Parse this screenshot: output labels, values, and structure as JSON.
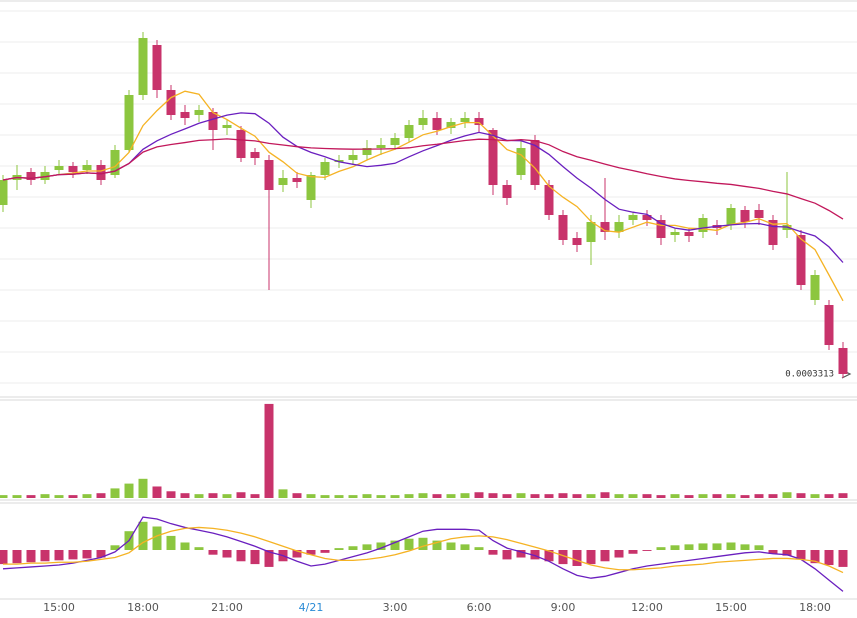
{
  "chart_data": {
    "type": "candlestick",
    "categories": [
      null,
      null,
      null,
      null,
      "15:00",
      null,
      null,
      null,
      null,
      null,
      "18:00",
      null,
      null,
      null,
      null,
      null,
      "21:00",
      null,
      null,
      null,
      null,
      null,
      "4/21",
      null,
      null,
      null,
      null,
      null,
      "3:00",
      null,
      null,
      null,
      null,
      null,
      "6:00",
      null,
      null,
      null,
      null,
      null,
      "9:00",
      null,
      null,
      null,
      null,
      null,
      "12:00",
      null,
      null,
      null,
      null,
      null,
      "15:00",
      null,
      null,
      null,
      null,
      null,
      "18:00",
      null,
      null
    ],
    "open": [
      0.00033975,
      0.000341,
      0.0003414,
      0.000341,
      0.0003415,
      0.0003417,
      0.0003415,
      0.00034175,
      0.00034125,
      0.0003425,
      0.00034525,
      0.00034775,
      0.0003455,
      0.0003444,
      0.00034425,
      0.0003444,
      0.0003436,
      0.0003435,
      0.0003424,
      0.000342,
      0.00034075,
      0.0003411,
      0.00034,
      0.00034125,
      0.0003419,
      0.000342,
      0.00034225,
      0.0003426,
      0.00034275,
      0.0003431,
      0.00034375,
      0.0003441,
      0.0003436,
      0.0003439,
      0.0003441,
      0.0003435,
      0.00034075,
      0.00034125,
      0.000343,
      0.00034075,
      0.00033925,
      0.0003381,
      0.0003379,
      0.0003389,
      0.0003384,
      0.000339,
      0.00033925,
      0.000339,
      0.00033825,
      0.0003384,
      0.0003384,
      0.00033875,
      0.00033875,
      0.0003395,
      0.0003395,
      0.000339,
      0.0003385,
      0.00033825,
      0.000335,
      0.00033475,
      0.0003326
    ],
    "close": [
      0.000341,
      0.00034125,
      0.000341,
      0.0003414,
      0.0003417,
      0.0003414,
      0.00034175,
      0.000341,
      0.0003425,
      0.00034525,
      0.0003481,
      0.0003455,
      0.00034425,
      0.0003441,
      0.0003445,
      0.0003435,
      0.00034375,
      0.0003421,
      0.0003421,
      0.0003405,
      0.0003411,
      0.0003409,
      0.00034125,
      0.0003419,
      0.000342,
      0.00034225,
      0.0003426,
      0.00034275,
      0.0003431,
      0.00034375,
      0.0003441,
      0.0003435,
      0.0003439,
      0.0003441,
      0.00034375,
      0.00034075,
      0.0003401,
      0.0003426,
      0.00034075,
      0.00033925,
      0.000338,
      0.00033775,
      0.0003389,
      0.0003384,
      0.0003389,
      0.00033925,
      0.000339,
      0.0003381,
      0.0003384,
      0.0003382,
      0.0003391,
      0.0003386,
      0.0003396,
      0.0003389,
      0.0003391,
      0.00033775,
      0.00033875,
      0.00033575,
      0.00033625,
      0.00033275,
      0.0003313
    ],
    "high": [
      0.00034125,
      0.00034175,
      0.0003416,
      0.0003417,
      0.000342,
      0.0003419,
      0.000342,
      0.000342,
      0.00034275,
      0.0003455,
      0.0003484,
      0.000348,
      0.00034575,
      0.00034475,
      0.00034475,
      0.0003446,
      0.000344,
      0.0003437,
      0.0003426,
      0.00034225,
      0.0003415,
      0.0003414,
      0.0003414,
      0.0003421,
      0.00034225,
      0.0003425,
      0.000343,
      0.0003431,
      0.00034335,
      0.000344,
      0.0003445,
      0.0003444,
      0.0003441,
      0.0003444,
      0.0003444,
      0.0003436,
      0.000341,
      0.000343,
      0.00034325,
      0.000341,
      0.0003395,
      0.0003384,
      0.00033925,
      0.0003411,
      0.00033925,
      0.0003394,
      0.0003395,
      0.00033925,
      0.0003386,
      0.0003386,
      0.0003393,
      0.000339,
      0.0003398,
      0.0003397,
      0.0003398,
      0.00033925,
      0.0003414,
      0.0003385,
      0.0003365,
      0.000335,
      0.0003329
    ],
    "low": [
      0.0003394,
      0.0003405,
      0.00034075,
      0.0003408,
      0.00034125,
      0.0003411,
      0.0003413,
      0.00034075,
      0.0003411,
      0.0003424,
      0.000345,
      0.0003451,
      0.000344,
      0.00034375,
      0.0003439,
      0.0003425,
      0.00034325,
      0.0003419,
      0.00034175,
      0.0003355,
      0.0003404,
      0.0003406,
      0.0003396,
      0.000341,
      0.0003416,
      0.00034175,
      0.000342,
      0.00034225,
      0.0003425,
      0.0003429,
      0.0003435,
      0.00034325,
      0.0003433,
      0.0003436,
      0.0003434,
      0.00034025,
      0.00033975,
      0.000341,
      0.0003405,
      0.000339,
      0.00033775,
      0.0003374,
      0.00033675,
      0.000338,
      0.0003381,
      0.00033875,
      0.0003387,
      0.00033775,
      0.0003379,
      0.0003379,
      0.0003381,
      0.00033825,
      0.0003385,
      0.0003386,
      0.00033875,
      0.0003375,
      0.0003381,
      0.0003355,
      0.00033475,
      0.0003325,
      0.0003311
    ],
    "ylim": [
      0.00033025,
      0.00035
    ],
    "last_price": 0.0003313,
    "up_color": "#8cc63f",
    "down_color": "#c8336b",
    "date_color": "#2a8bd6",
    "ma": [
      {
        "period": 5,
        "color": "#f5b324"
      },
      {
        "period": 10,
        "color": "#6a1fbf"
      },
      {
        "period": 30,
        "color": "#c2185b"
      }
    ],
    "volume": {
      "values": [
        3,
        3,
        3,
        4,
        3,
        3,
        4,
        5,
        10,
        15,
        20,
        12,
        7,
        5,
        4,
        5,
        4,
        6,
        4,
        98,
        9,
        5,
        4,
        3,
        3,
        3,
        4,
        3,
        3,
        4,
        5,
        4,
        4,
        5,
        6,
        5,
        4,
        5,
        4,
        4,
        5,
        4,
        4,
        6,
        4,
        4,
        4,
        3,
        4,
        3,
        4,
        4,
        4,
        3,
        4,
        4,
        6,
        5,
        4,
        4,
        5
      ],
      "ylim": [
        0,
        100
      ]
    },
    "macd": {
      "hist": [
        -15,
        -14,
        -13,
        -12,
        -11,
        -10,
        -9,
        -8,
        5,
        20,
        30,
        25,
        15,
        8,
        3,
        -5,
        -8,
        -12,
        -15,
        -18,
        -12,
        -8,
        -5,
        -3,
        2,
        4,
        6,
        8,
        10,
        12,
        13,
        10,
        8,
        6,
        3,
        -5,
        -10,
        -8,
        -10,
        -12,
        -15,
        -17,
        -15,
        -12,
        -8,
        -4,
        -1,
        3,
        5,
        6,
        7,
        7,
        8,
        6,
        5,
        -4,
        -6,
        -10,
        -14,
        -16,
        -18
      ],
      "dif": [
        -20,
        -19,
        -18,
        -17,
        -16,
        -14,
        -11,
        -8,
        -2,
        10,
        35,
        33,
        28,
        24,
        21,
        18,
        14,
        9,
        4,
        -2,
        -6,
        -12,
        -17,
        -15,
        -11,
        -7,
        -3,
        2,
        8,
        14,
        20,
        22,
        22,
        22,
        21,
        10,
        2,
        -2,
        -6,
        -12,
        -20,
        -27,
        -30,
        -28,
        -24,
        -20,
        -17,
        -15,
        -13,
        -11,
        -9,
        -7,
        -5,
        -3,
        -2,
        -4,
        -5,
        -10,
        -20,
        -32,
        -44
      ],
      "dea": [
        -15,
        -15,
        -14,
        -14,
        -13,
        -13,
        -12,
        -10,
        -8,
        -3,
        8,
        15,
        20,
        23,
        24,
        23,
        21,
        18,
        14,
        9,
        4,
        -1,
        -5,
        -9,
        -11,
        -11,
        -10,
        -8,
        -5,
        -1,
        4,
        8,
        12,
        14,
        15,
        14,
        11,
        7,
        3,
        -1,
        -6,
        -11,
        -16,
        -19,
        -21,
        -21,
        -20,
        -19,
        -17,
        -16,
        -15,
        -13,
        -12,
        -11,
        -10,
        -9,
        -9,
        -10,
        -12,
        -17,
        -24
      ],
      "ylim": [
        -50,
        50
      ],
      "dif_color": "#6a1fbf",
      "dea_color": "#f5b324"
    }
  }
}
